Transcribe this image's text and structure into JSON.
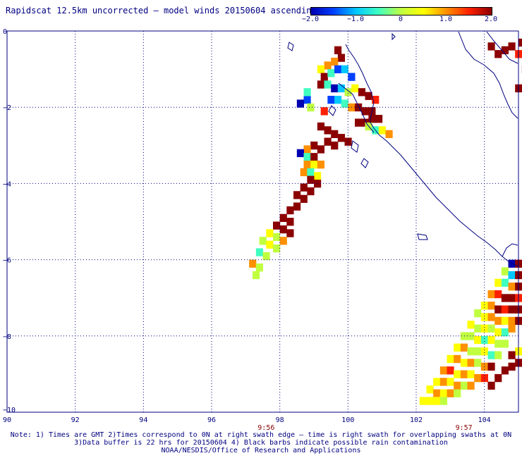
{
  "title": "Rapidscat 12.5km uncorrected — model winds 20150604 ascending",
  "colorbar": {
    "labels": [
      "−2.0",
      "−1.0",
      "0",
      "1.0",
      "2.0"
    ],
    "min": -2.0,
    "max": 2.0,
    "colors": [
      "#0000b0",
      "#0040ff",
      "#00c8ff",
      "#40ffc0",
      "#c0ff40",
      "#ffff00",
      "#ff9000",
      "#ff2000",
      "#8b0000"
    ]
  },
  "map": {
    "lon_range": [
      90,
      105
    ],
    "lat_range": [
      -10,
      0
    ],
    "x_ticks": [
      "90",
      "92",
      "94",
      "96",
      "98",
      "100",
      "102",
      "104"
    ],
    "y_ticks": [
      "0",
      "−2",
      "−4",
      "−6",
      "−8",
      "−10"
    ],
    "times": [
      {
        "label": "9:56",
        "lon": 97.6
      },
      {
        "label": "9:57",
        "lon": 103.4
      }
    ],
    "grid": true,
    "coastline_color": "#000080",
    "swath_cells": [
      {
        "lon": 99.7,
        "lat": -0.5,
        "v": 2.0
      },
      {
        "lon": 99.8,
        "lat": -0.7,
        "v": 2.0
      },
      {
        "lon": 99.6,
        "lat": -0.8,
        "v": 1.2
      },
      {
        "lon": 99.4,
        "lat": -0.9,
        "v": 0.8
      },
      {
        "lon": 99.2,
        "lat": -1.0,
        "v": 0.4
      },
      {
        "lon": 99.3,
        "lat": -1.2,
        "v": 2.0
      },
      {
        "lon": 99.5,
        "lat": -1.1,
        "v": -0.6
      },
      {
        "lon": 99.7,
        "lat": -1.0,
        "v": -1.4
      },
      {
        "lon": 99.9,
        "lat": -1.0,
        "v": -1.0
      },
      {
        "lon": 100.1,
        "lat": -1.2,
        "v": -1.6
      },
      {
        "lon": 99.2,
        "lat": -1.4,
        "v": 1.8
      },
      {
        "lon": 99.4,
        "lat": -1.4,
        "v": -0.4
      },
      {
        "lon": 99.6,
        "lat": -1.5,
        "v": -1.8
      },
      {
        "lon": 99.8,
        "lat": -1.5,
        "v": -0.8
      },
      {
        "lon": 100.0,
        "lat": -1.6,
        "v": -0.2
      },
      {
        "lon": 100.2,
        "lat": -1.5,
        "v": 0.4
      },
      {
        "lon": 100.4,
        "lat": -1.6,
        "v": 2.0
      },
      {
        "lon": 100.6,
        "lat": -1.7,
        "v": 2.0
      },
      {
        "lon": 100.8,
        "lat": -1.8,
        "v": 1.5
      },
      {
        "lon": 99.5,
        "lat": -1.8,
        "v": -1.6
      },
      {
        "lon": 99.7,
        "lat": -1.8,
        "v": -1.2
      },
      {
        "lon": 99.9,
        "lat": -1.9,
        "v": -0.4
      },
      {
        "lon": 100.1,
        "lat": -2.0,
        "v": 0.8
      },
      {
        "lon": 100.3,
        "lat": -2.0,
        "v": 2.0
      },
      {
        "lon": 100.5,
        "lat": -2.1,
        "v": 2.0
      },
      {
        "lon": 100.7,
        "lat": -2.1,
        "v": 2.0
      },
      {
        "lon": 100.9,
        "lat": -2.3,
        "v": 2.0
      },
      {
        "lon": 100.7,
        "lat": -2.3,
        "v": 2.0
      },
      {
        "lon": 100.5,
        "lat": -2.4,
        "v": 2.0
      },
      {
        "lon": 100.3,
        "lat": -2.4,
        "v": 2.0
      },
      {
        "lon": 100.6,
        "lat": -2.5,
        "v": 0.2
      },
      {
        "lon": 100.8,
        "lat": -2.6,
        "v": -0.4
      },
      {
        "lon": 101.0,
        "lat": -2.6,
        "v": 0.6
      },
      {
        "lon": 101.2,
        "lat": -2.7,
        "v": 1.0
      },
      {
        "lon": 98.8,
        "lat": -1.8,
        "v": -1.6
      },
      {
        "lon": 98.6,
        "lat": -1.9,
        "v": -1.8
      },
      {
        "lon": 98.9,
        "lat": -2.0,
        "v": 0.2
      },
      {
        "lon": 99.3,
        "lat": -2.1,
        "v": 1.4
      },
      {
        "lon": 98.8,
        "lat": -1.6,
        "v": -0.6
      },
      {
        "lon": 99.2,
        "lat": -2.5,
        "v": 2.0
      },
      {
        "lon": 99.4,
        "lat": -2.6,
        "v": 2.0
      },
      {
        "lon": 99.6,
        "lat": -2.7,
        "v": 2.0
      },
      {
        "lon": 99.8,
        "lat": -2.8,
        "v": 2.0
      },
      {
        "lon": 100.0,
        "lat": -2.9,
        "v": 2.0
      },
      {
        "lon": 99.4,
        "lat": -2.9,
        "v": 2.0
      },
      {
        "lon": 99.6,
        "lat": -3.0,
        "v": 2.0
      },
      {
        "lon": 99.0,
        "lat": -3.0,
        "v": 2.0
      },
      {
        "lon": 99.2,
        "lat": -3.1,
        "v": 2.0
      },
      {
        "lon": 98.8,
        "lat": -3.1,
        "v": 1.0
      },
      {
        "lon": 98.6,
        "lat": -3.2,
        "v": -1.8
      },
      {
        "lon": 98.8,
        "lat": -3.3,
        "v": -0.4
      },
      {
        "lon": 99.0,
        "lat": -3.3,
        "v": 1.8
      },
      {
        "lon": 98.8,
        "lat": -3.5,
        "v": 1.2
      },
      {
        "lon": 99.0,
        "lat": -3.5,
        "v": 0.6
      },
      {
        "lon": 99.2,
        "lat": -3.5,
        "v": 0.8
      },
      {
        "lon": 98.7,
        "lat": -3.7,
        "v": 1.0
      },
      {
        "lon": 98.9,
        "lat": -3.7,
        "v": -0.6
      },
      {
        "lon": 99.1,
        "lat": -3.8,
        "v": 0.4
      },
      {
        "lon": 98.9,
        "lat": -3.9,
        "v": 2.0
      },
      {
        "lon": 99.1,
        "lat": -4.0,
        "v": 2.0
      },
      {
        "lon": 98.7,
        "lat": -4.1,
        "v": 2.0
      },
      {
        "lon": 98.9,
        "lat": -4.2,
        "v": 2.0
      },
      {
        "lon": 98.5,
        "lat": -4.3,
        "v": 2.0
      },
      {
        "lon": 98.7,
        "lat": -4.4,
        "v": 2.0
      },
      {
        "lon": 98.5,
        "lat": -4.6,
        "v": 2.0
      },
      {
        "lon": 98.3,
        "lat": -4.7,
        "v": 2.0
      },
      {
        "lon": 98.1,
        "lat": -4.9,
        "v": 2.0
      },
      {
        "lon": 98.3,
        "lat": -5.0,
        "v": 2.0
      },
      {
        "lon": 97.9,
        "lat": -5.1,
        "v": 2.0
      },
      {
        "lon": 98.1,
        "lat": -5.2,
        "v": 2.0
      },
      {
        "lon": 98.3,
        "lat": -5.3,
        "v": 2.0
      },
      {
        "lon": 97.7,
        "lat": -5.3,
        "v": 0.6
      },
      {
        "lon": 97.9,
        "lat": -5.4,
        "v": 0.2
      },
      {
        "lon": 98.1,
        "lat": -5.5,
        "v": 0.9
      },
      {
        "lon": 97.5,
        "lat": -5.5,
        "v": -0.2
      },
      {
        "lon": 97.7,
        "lat": -5.6,
        "v": 0.4
      },
      {
        "lon": 97.9,
        "lat": -5.7,
        "v": 0.0
      },
      {
        "lon": 97.4,
        "lat": -5.8,
        "v": -0.4
      },
      {
        "lon": 97.6,
        "lat": -5.9,
        "v": 0.1
      },
      {
        "lon": 97.2,
        "lat": -6.1,
        "v": 0.8
      },
      {
        "lon": 97.4,
        "lat": -6.2,
        "v": -0.2
      },
      {
        "lon": 97.3,
        "lat": -6.4,
        "v": -0.1
      },
      {
        "lon": 104.6,
        "lat": -0.5,
        "v": 2.0
      },
      {
        "lon": 104.8,
        "lat": -0.4,
        "v": 2.0
      },
      {
        "lon": 105.0,
        "lat": -0.6,
        "v": 1.6
      },
      {
        "lon": 105.2,
        "lat": -1.0,
        "v": 2.0
      },
      {
        "lon": 105.2,
        "lat": -1.5,
        "v": 2.0
      },
      {
        "lon": 105.0,
        "lat": -1.5,
        "v": 2.0
      },
      {
        "lon": 105.1,
        "lat": -0.3,
        "v": 2.0
      },
      {
        "lon": 104.4,
        "lat": -0.6,
        "v": 2.0
      },
      {
        "lon": 104.2,
        "lat": -0.4,
        "v": 2.0
      },
      {
        "lon": 104.8,
        "lat": -6.1,
        "v": -1.8
      },
      {
        "lon": 105.0,
        "lat": -6.1,
        "v": 2.0
      },
      {
        "lon": 104.6,
        "lat": -6.3,
        "v": 0.2
      },
      {
        "lon": 104.8,
        "lat": -6.4,
        "v": -1.2
      },
      {
        "lon": 105.0,
        "lat": -6.4,
        "v": 2.0
      },
      {
        "lon": 104.4,
        "lat": -6.6,
        "v": 0.4
      },
      {
        "lon": 104.6,
        "lat": -6.6,
        "v": -0.6
      },
      {
        "lon": 104.8,
        "lat": -6.7,
        "v": 0.8
      },
      {
        "lon": 105.0,
        "lat": -6.7,
        "v": 2.0
      },
      {
        "lon": 104.2,
        "lat": -6.9,
        "v": 1.2
      },
      {
        "lon": 104.4,
        "lat": -6.9,
        "v": 1.6
      },
      {
        "lon": 104.6,
        "lat": -7.0,
        "v": 1.8
      },
      {
        "lon": 104.8,
        "lat": -7.0,
        "v": 2.0
      },
      {
        "lon": 105.0,
        "lat": -7.0,
        "v": 1.4
      },
      {
        "lon": 104.0,
        "lat": -7.2,
        "v": 0.4
      },
      {
        "lon": 104.2,
        "lat": -7.2,
        "v": 1.0
      },
      {
        "lon": 104.4,
        "lat": -7.3,
        "v": 2.0
      },
      {
        "lon": 104.6,
        "lat": -7.3,
        "v": 1.4
      },
      {
        "lon": 104.8,
        "lat": -7.3,
        "v": 2.0
      },
      {
        "lon": 105.0,
        "lat": -7.3,
        "v": 2.0
      },
      {
        "lon": 103.8,
        "lat": -7.4,
        "v": 0.2
      },
      {
        "lon": 104.0,
        "lat": -7.5,
        "v": 0.6
      },
      {
        "lon": 104.2,
        "lat": -7.5,
        "v": 1.2
      },
      {
        "lon": 104.4,
        "lat": -7.6,
        "v": 0.8
      },
      {
        "lon": 104.6,
        "lat": -7.6,
        "v": 0.6
      },
      {
        "lon": 104.8,
        "lat": -7.6,
        "v": 1.0
      },
      {
        "lon": 105.0,
        "lat": -7.6,
        "v": 1.8
      },
      {
        "lon": 103.6,
        "lat": -7.7,
        "v": 0.4
      },
      {
        "lon": 103.8,
        "lat": -7.8,
        "v": -0.2
      },
      {
        "lon": 104.0,
        "lat": -7.8,
        "v": 0.6
      },
      {
        "lon": 104.2,
        "lat": -7.8,
        "v": 0.2
      },
      {
        "lon": 104.4,
        "lat": -7.9,
        "v": 0.4
      },
      {
        "lon": 104.6,
        "lat": -7.9,
        "v": -0.4
      },
      {
        "lon": 104.8,
        "lat": -7.8,
        "v": 0.8
      },
      {
        "lon": 103.4,
        "lat": -8.0,
        "v": 0.0
      },
      {
        "lon": 103.6,
        "lat": -8.0,
        "v": 0.2
      },
      {
        "lon": 103.8,
        "lat": -8.1,
        "v": 0.6
      },
      {
        "lon": 104.0,
        "lat": -8.1,
        "v": -0.4
      },
      {
        "lon": 104.2,
        "lat": -8.1,
        "v": 0.4
      },
      {
        "lon": 104.4,
        "lat": -8.2,
        "v": 0.2
      },
      {
        "lon": 104.6,
        "lat": -8.2,
        "v": -0.2
      },
      {
        "lon": 103.2,
        "lat": -8.3,
        "v": 0.6
      },
      {
        "lon": 103.4,
        "lat": -8.3,
        "v": 0.8
      },
      {
        "lon": 103.6,
        "lat": -8.4,
        "v": 0.2
      },
      {
        "lon": 103.8,
        "lat": -8.4,
        "v": -0.2
      },
      {
        "lon": 104.0,
        "lat": -8.4,
        "v": 0.4
      },
      {
        "lon": 104.2,
        "lat": -8.5,
        "v": -0.6
      },
      {
        "lon": 104.4,
        "lat": -8.5,
        "v": 0.0
      },
      {
        "lon": 103.0,
        "lat": -8.6,
        "v": 0.6
      },
      {
        "lon": 103.2,
        "lat": -8.6,
        "v": 1.2
      },
      {
        "lon": 103.4,
        "lat": -8.7,
        "v": 0.4
      },
      {
        "lon": 103.6,
        "lat": -8.7,
        "v": 0.8
      },
      {
        "lon": 103.8,
        "lat": -8.7,
        "v": 0.2
      },
      {
        "lon": 104.0,
        "lat": -8.8,
        "v": 1.0
      },
      {
        "lon": 104.2,
        "lat": -8.8,
        "v": 2.0
      },
      {
        "lon": 102.8,
        "lat": -8.9,
        "v": 0.8
      },
      {
        "lon": 103.0,
        "lat": -8.9,
        "v": 1.6
      },
      {
        "lon": 103.2,
        "lat": -9.0,
        "v": 0.6
      },
      {
        "lon": 103.4,
        "lat": -9.0,
        "v": 1.2
      },
      {
        "lon": 103.6,
        "lat": -9.0,
        "v": 0.4
      },
      {
        "lon": 103.8,
        "lat": -9.1,
        "v": 0.9
      },
      {
        "lon": 104.0,
        "lat": -9.1,
        "v": 1.4
      },
      {
        "lon": 102.6,
        "lat": -9.2,
        "v": 0.4
      },
      {
        "lon": 102.8,
        "lat": -9.2,
        "v": 1.0
      },
      {
        "lon": 103.0,
        "lat": -9.2,
        "v": 0.6
      },
      {
        "lon": 103.2,
        "lat": -9.3,
        "v": 1.2
      },
      {
        "lon": 103.4,
        "lat": -9.3,
        "v": 0.2
      },
      {
        "lon": 103.6,
        "lat": -9.3,
        "v": 0.8
      },
      {
        "lon": 102.4,
        "lat": -9.4,
        "v": 0.6
      },
      {
        "lon": 102.6,
        "lat": -9.5,
        "v": 0.9
      },
      {
        "lon": 102.8,
        "lat": -9.5,
        "v": 0.4
      },
      {
        "lon": 103.0,
        "lat": -9.5,
        "v": 1.0
      },
      {
        "lon": 103.2,
        "lat": -9.5,
        "v": 0.2
      },
      {
        "lon": 102.2,
        "lat": -9.7,
        "v": 0.6
      },
      {
        "lon": 102.4,
        "lat": -9.7,
        "v": 0.3
      },
      {
        "lon": 102.6,
        "lat": -9.7,
        "v": 0.4
      },
      {
        "lon": 102.8,
        "lat": -9.7,
        "v": 0.1
      },
      {
        "lon": 104.6,
        "lat": -8.9,
        "v": 2.0
      },
      {
        "lon": 104.8,
        "lat": -8.8,
        "v": 2.0
      },
      {
        "lon": 105.0,
        "lat": -8.7,
        "v": 2.0
      },
      {
        "lon": 104.4,
        "lat": -9.1,
        "v": 2.0
      },
      {
        "lon": 104.2,
        "lat": -9.3,
        "v": 2.0
      },
      {
        "lon": 105.0,
        "lat": -8.4,
        "v": 0.4
      },
      {
        "lon": 104.8,
        "lat": -8.5,
        "v": 2.0
      }
    ]
  },
  "notes": [
    "Note: 1) Times are GMT 2)Times correspond to 0N at right swath edge — time is right swath for overlapping swaths at 0N",
    "3)Data buffer is 22 hrs for 20150604 4) Black barbs indicate possible rain contamination",
    "NOAA/NESDIS/Office of Research and Applications"
  ]
}
